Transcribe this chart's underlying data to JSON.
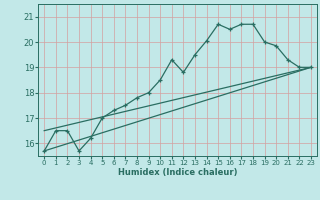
{
  "xlabel": "Humidex (Indice chaleur)",
  "background_color": "#c2e8e8",
  "grid_color": "#d4a0a0",
  "line_color": "#2a6e62",
  "xlim": [
    -0.5,
    23.5
  ],
  "ylim": [
    15.5,
    21.5
  ],
  "yticks": [
    16,
    17,
    18,
    19,
    20,
    21
  ],
  "xticks": [
    0,
    1,
    2,
    3,
    4,
    5,
    6,
    7,
    8,
    9,
    10,
    11,
    12,
    13,
    14,
    15,
    16,
    17,
    18,
    19,
    20,
    21,
    22,
    23
  ],
  "series_main": {
    "x": [
      0,
      1,
      2,
      3,
      4,
      5,
      6,
      7,
      8,
      9,
      10,
      11,
      12,
      13,
      14,
      15,
      16,
      17,
      18,
      19,
      20,
      21,
      22,
      23
    ],
    "y": [
      15.7,
      16.5,
      16.5,
      15.7,
      16.2,
      17.0,
      17.3,
      17.5,
      17.8,
      18.0,
      18.5,
      19.3,
      18.8,
      19.5,
      20.05,
      20.7,
      20.5,
      20.7,
      20.7,
      20.0,
      19.85,
      19.3,
      19.0,
      19.0
    ]
  },
  "series_low_linear": {
    "x": [
      0,
      23
    ],
    "y": [
      15.7,
      19.0
    ]
  },
  "series_high_linear": {
    "x": [
      0,
      23
    ],
    "y": [
      16.5,
      19.0
    ]
  }
}
